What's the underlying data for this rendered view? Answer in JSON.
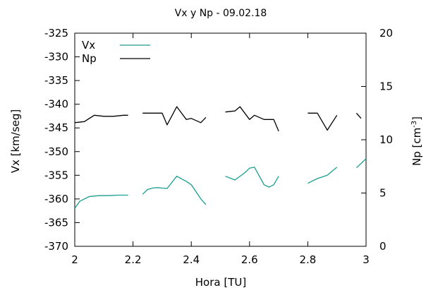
{
  "chart_data": {
    "type": "line",
    "title": "Vx y Np - 09.02.18",
    "xlabel": "Hora [TU]",
    "ylabel_left": "Vx [km/seg]",
    "ylabel_right_main": "Np [cm",
    "ylabel_right_sup": "-3",
    "ylabel_right_end": "]",
    "xlim": [
      2,
      3
    ],
    "ylim_left": [
      -370,
      -325
    ],
    "ylim_right": [
      0,
      20
    ],
    "x_ticks": [
      2,
      2.2,
      2.4,
      2.6,
      2.8,
      3
    ],
    "x_tick_labels": [
      "2",
      "2.2",
      "2.4",
      "2.6",
      "2.8",
      "3"
    ],
    "y_ticks_left": [
      -325,
      -330,
      -335,
      -340,
      -345,
      -350,
      -355,
      -360,
      -365,
      -370
    ],
    "y_tick_labels_left": [
      "-325",
      "-330",
      "-335",
      "-340",
      "-345",
      "-350",
      "-355",
      "-360",
      "-365",
      "-370"
    ],
    "y_ticks_right": [
      20,
      15,
      10,
      5,
      0
    ],
    "y_tick_labels_right": [
      "20",
      "15",
      "10",
      "5",
      "0"
    ],
    "grid": false,
    "legend_position": "top-left",
    "series": [
      {
        "name": "Vx",
        "axis": "left",
        "color": "#1a9e8f",
        "segments": [
          [
            [
              2.0,
              -362.0
            ],
            [
              2.017,
              -360.5
            ],
            [
              2.05,
              -359.5
            ],
            [
              2.083,
              -359.3
            ],
            [
              2.117,
              -359.3
            ],
            [
              2.15,
              -359.2
            ],
            [
              2.183,
              -359.2
            ]
          ],
          [
            [
              2.233,
              -359.0
            ],
            [
              2.25,
              -358.0
            ],
            [
              2.267,
              -357.7
            ],
            [
              2.283,
              -357.6
            ],
            [
              2.3,
              -357.7
            ],
            [
              2.317,
              -357.8
            ],
            [
              2.35,
              -355.2
            ],
            [
              2.383,
              -356.3
            ],
            [
              2.4,
              -357.0
            ],
            [
              2.433,
              -360.0
            ],
            [
              2.45,
              -361.2
            ]
          ],
          [
            [
              2.517,
              -355.2
            ],
            [
              2.55,
              -356.0
            ],
            [
              2.583,
              -354.5
            ],
            [
              2.6,
              -353.5
            ],
            [
              2.617,
              -353.3
            ],
            [
              2.65,
              -357.0
            ],
            [
              2.667,
              -357.5
            ],
            [
              2.683,
              -357.0
            ],
            [
              2.7,
              -355.2
            ]
          ],
          [
            [
              2.8,
              -356.7
            ],
            [
              2.833,
              -355.7
            ],
            [
              2.867,
              -355.0
            ],
            [
              2.9,
              -353.3
            ]
          ],
          [
            [
              2.967,
              -353.4
            ],
            [
              2.983,
              -352.5
            ],
            [
              3.0,
              -351.5
            ]
          ]
        ]
      },
      {
        "name": "Np",
        "axis": "right",
        "color": "#000000",
        "segments": [
          [
            [
              2.0,
              11.6
            ],
            [
              2.033,
              11.7
            ],
            [
              2.067,
              12.3
            ],
            [
              2.1,
              12.2
            ],
            [
              2.133,
              12.2
            ],
            [
              2.167,
              12.3
            ],
            [
              2.183,
              12.3
            ]
          ],
          [
            [
              2.233,
              12.5
            ],
            [
              2.267,
              12.5
            ],
            [
              2.3,
              12.5
            ],
            [
              2.317,
              11.4
            ],
            [
              2.35,
              13.1
            ],
            [
              2.383,
              11.9
            ],
            [
              2.4,
              12.0
            ],
            [
              2.433,
              11.6
            ],
            [
              2.45,
              12.1
            ]
          ],
          [
            [
              2.517,
              12.6
            ],
            [
              2.55,
              12.7
            ],
            [
              2.567,
              13.1
            ],
            [
              2.6,
              11.9
            ],
            [
              2.617,
              12.3
            ],
            [
              2.65,
              11.9
            ],
            [
              2.683,
              11.9
            ],
            [
              2.7,
              10.8
            ]
          ],
          [
            [
              2.8,
              12.5
            ],
            [
              2.833,
              12.5
            ],
            [
              2.867,
              10.9
            ],
            [
              2.9,
              12.3
            ]
          ],
          [
            [
              2.967,
              12.5
            ],
            [
              2.983,
              12.0
            ]
          ]
        ]
      }
    ]
  }
}
